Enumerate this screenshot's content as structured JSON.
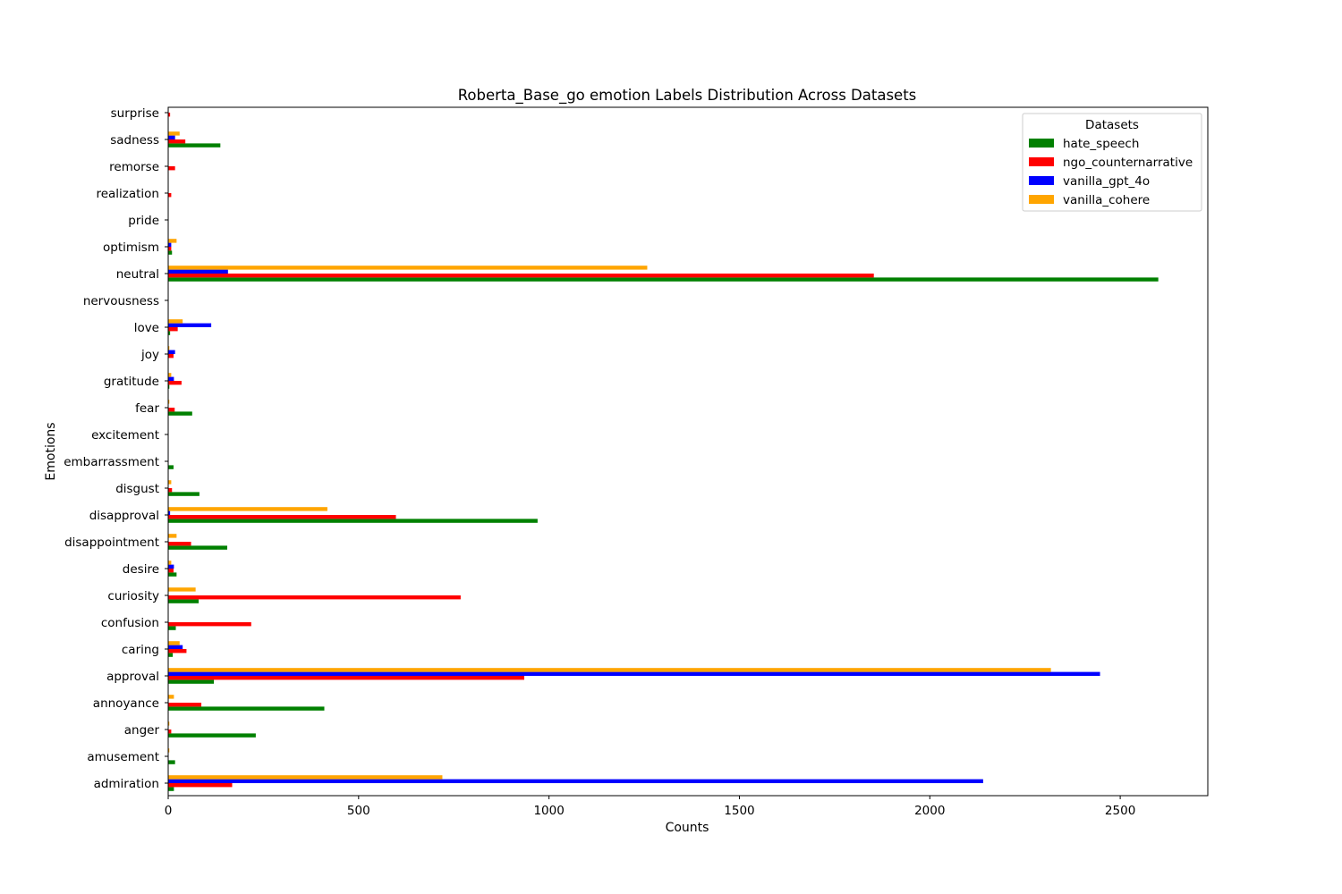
{
  "chart_data": {
    "type": "bar",
    "orientation": "horizontal",
    "title": "Roberta_Base_go emotion Labels Distribution Across Datasets",
    "xlabel": "Counts",
    "ylabel": "Emotions",
    "xlim": [
      0,
      2730
    ],
    "xticks": [
      0,
      500,
      1000,
      1500,
      2000,
      2500
    ],
    "grid": false,
    "legend_title": "Datasets",
    "legend_position": "top-right",
    "categories": [
      "admiration",
      "amusement",
      "anger",
      "annoyance",
      "approval",
      "caring",
      "confusion",
      "curiosity",
      "desire",
      "disappointment",
      "disapproval",
      "disgust",
      "embarrassment",
      "excitement",
      "fear",
      "gratitude",
      "joy",
      "love",
      "nervousness",
      "neutral",
      "optimism",
      "pride",
      "realization",
      "remorse",
      "sadness",
      "surprise"
    ],
    "series": [
      {
        "name": "hate_speech",
        "color": "#008000",
        "values": [
          15,
          18,
          230,
          410,
          120,
          12,
          20,
          80,
          22,
          155,
          970,
          82,
          14,
          0,
          63,
          3,
          0,
          5,
          0,
          2600,
          10,
          0,
          0,
          0,
          137,
          0
        ]
      },
      {
        "name": "ngo_counternarrative",
        "color": "#ff0000",
        "values": [
          168,
          0,
          8,
          87,
          935,
          48,
          218,
          768,
          14,
          60,
          598,
          10,
          0,
          0,
          17,
          35,
          14,
          25,
          0,
          1853,
          8,
          0,
          8,
          18,
          45,
          5
        ]
      },
      {
        "name": "vanilla_gpt_4o",
        "color": "#0000ff",
        "values": [
          2140,
          0,
          0,
          0,
          2447,
          38,
          0,
          0,
          15,
          0,
          5,
          0,
          0,
          0,
          0,
          15,
          18,
          113,
          0,
          157,
          8,
          0,
          0,
          0,
          18,
          0
        ]
      },
      {
        "name": "vanilla_cohere",
        "color": "#ffa500",
        "values": [
          720,
          3,
          3,
          15,
          2318,
          30,
          0,
          72,
          8,
          22,
          418,
          8,
          0,
          0,
          3,
          8,
          3,
          38,
          0,
          1258,
          22,
          0,
          0,
          0,
          30,
          0
        ]
      }
    ]
  }
}
